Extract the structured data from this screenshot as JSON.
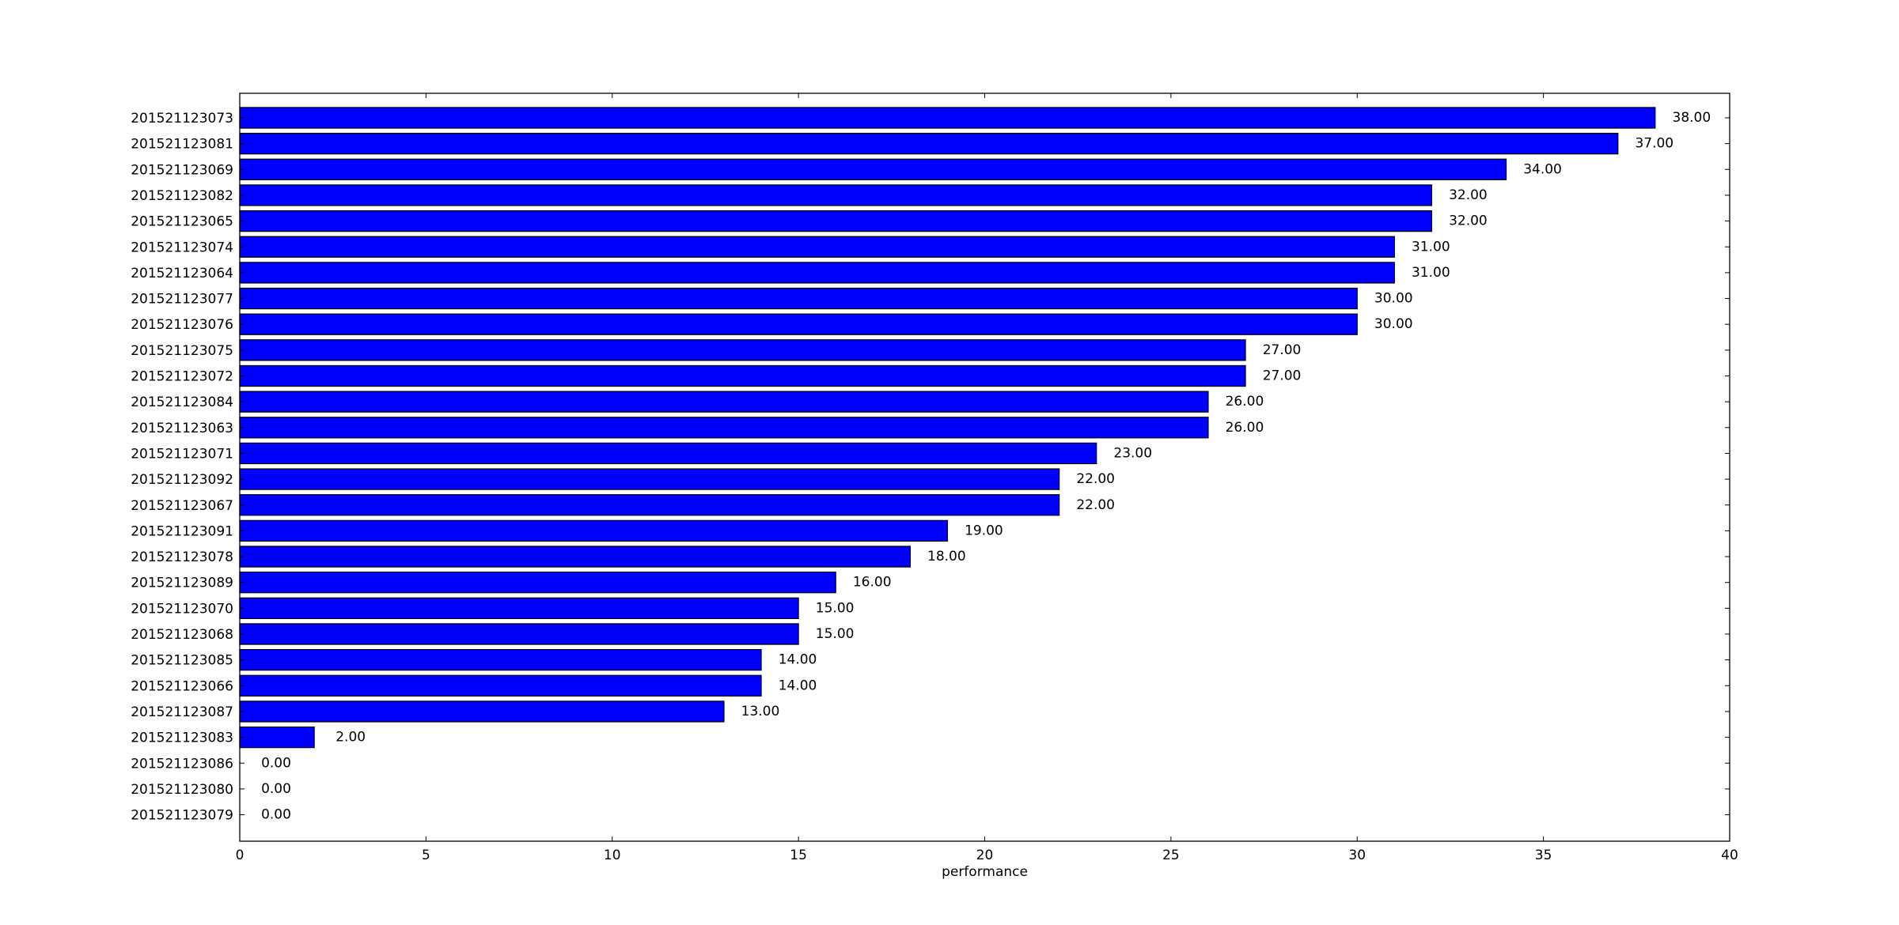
{
  "chart_data": {
    "type": "bar",
    "orientation": "horizontal",
    "title": "",
    "xlabel": "performance",
    "ylabel": "",
    "xlim": [
      0,
      40
    ],
    "x_ticks": [
      0,
      5,
      10,
      15,
      20,
      25,
      30,
      35,
      40
    ],
    "grid": false,
    "legend": "none",
    "bar_color": "#0000ff",
    "value_label_format": "2 decimals",
    "categories": [
      "201521123073",
      "201521123081",
      "201521123069",
      "201521123082",
      "201521123065",
      "201521123074",
      "201521123064",
      "201521123077",
      "201521123076",
      "201521123075",
      "201521123072",
      "201521123084",
      "201521123063",
      "201521123071",
      "201521123092",
      "201521123067",
      "201521123091",
      "201521123078",
      "201521123089",
      "201521123070",
      "201521123068",
      "201521123085",
      "201521123066",
      "201521123087",
      "201521123083",
      "201521123086",
      "201521123080",
      "201521123079"
    ],
    "values": [
      38,
      37,
      34,
      32,
      32,
      31,
      31,
      30,
      30,
      27,
      27,
      26,
      26,
      23,
      22,
      22,
      19,
      18,
      16,
      15,
      15,
      14,
      14,
      13,
      2,
      0,
      0,
      0
    ],
    "value_labels": [
      "38.00",
      "37.00",
      "34.00",
      "32.00",
      "32.00",
      "31.00",
      "31.00",
      "30.00",
      "30.00",
      "27.00",
      "27.00",
      "26.00",
      "26.00",
      "23.00",
      "22.00",
      "22.00",
      "19.00",
      "18.00",
      "16.00",
      "15.00",
      "15.00",
      "14.00",
      "14.00",
      "13.00",
      "2.00",
      "0.00",
      "0.00",
      "0.00"
    ]
  }
}
